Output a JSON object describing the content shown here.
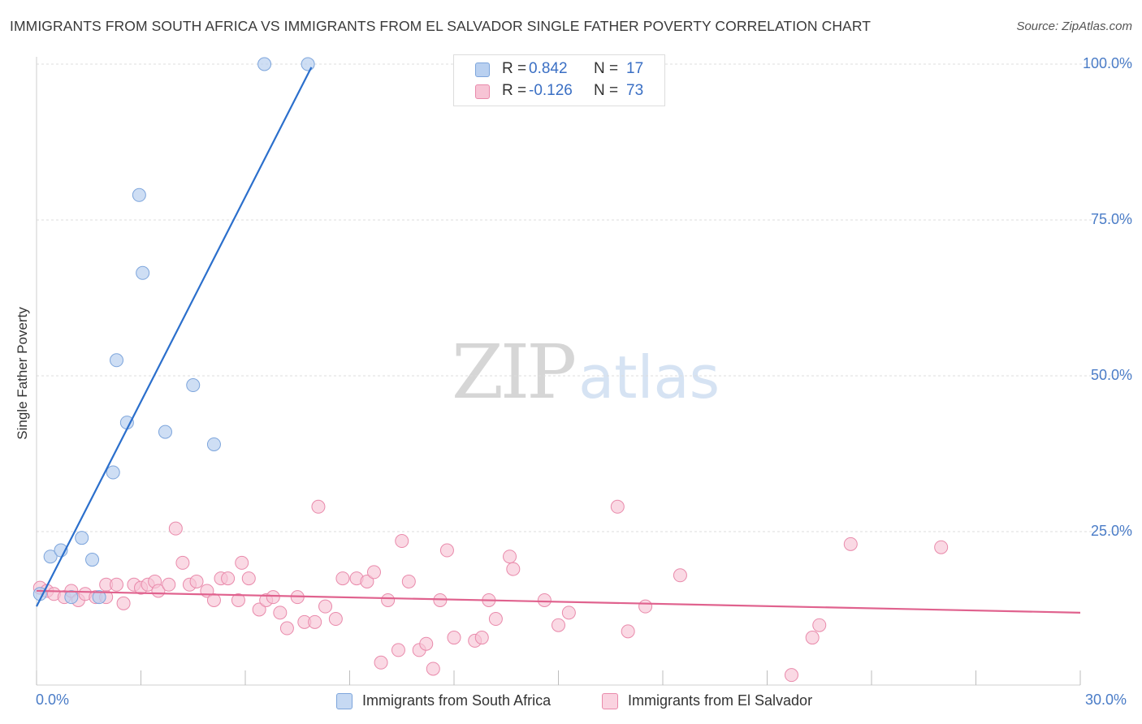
{
  "title": "IMMIGRANTS FROM SOUTH AFRICA VS IMMIGRANTS FROM EL SALVADOR SINGLE FATHER POVERTY CORRELATION CHART",
  "source": "Source: ZipAtlas.com",
  "watermark": {
    "zip": "ZIP",
    "atlas": "atlas"
  },
  "colors": {
    "blue_fill": "#b9d0f0",
    "blue_edge": "#7da5dc",
    "blue_line": "#2b6fcc",
    "pink_fill": "#f7c4d5",
    "pink_edge": "#e98aab",
    "pink_line": "#e0628e",
    "tick_text": "#4a7cc7",
    "grid": "#dcdcdc"
  },
  "legend_top": [
    {
      "r_label": "R =",
      "r_value": "0.842",
      "n_label": "N =",
      "n_value": "17"
    },
    {
      "r_label": "R =",
      "r_value": "-0.126",
      "n_label": "N =",
      "n_value": "73"
    }
  ],
  "chart_data": {
    "type": "scatter",
    "title": "IMMIGRANTS FROM SOUTH AFRICA VS IMMIGRANTS FROM EL SALVADOR SINGLE FATHER POVERTY CORRELATION CHART",
    "xlabel": "",
    "ylabel": "Single Father Poverty",
    "xlim": [
      0,
      30
    ],
    "ylim": [
      0,
      105
    ],
    "x_tick_labels": [
      "0.0%",
      "30.0%"
    ],
    "y_ticks": [
      25,
      50,
      75,
      100
    ],
    "y_tick_labels": [
      "25.0%",
      "50.0%",
      "75.0%",
      "100.0%"
    ],
    "grid": true,
    "legend_position": "bottom",
    "series": [
      {
        "name": "Immigrants from South Africa",
        "color": "#b9d0f0",
        "R": 0.842,
        "N": 17,
        "points": [
          [
            0.1,
            15.0
          ],
          [
            0.4,
            21.0
          ],
          [
            0.7,
            22.0
          ],
          [
            1.0,
            14.5
          ],
          [
            1.3,
            24.0
          ],
          [
            1.6,
            20.5
          ],
          [
            1.8,
            14.5
          ],
          [
            2.2,
            34.5
          ],
          [
            2.3,
            52.5
          ],
          [
            2.6,
            42.5
          ],
          [
            2.95,
            79.0
          ],
          [
            3.05,
            66.5
          ],
          [
            3.7,
            41.0
          ],
          [
            4.5,
            48.5
          ],
          [
            5.1,
            39.0
          ],
          [
            6.55,
            100.0
          ],
          [
            7.8,
            100.0
          ]
        ],
        "trendline": {
          "x": [
            0.0,
            7.9
          ],
          "y": [
            13.0,
            99.5
          ]
        }
      },
      {
        "name": "Immigrants from El Salvador",
        "color": "#f7c4d5",
        "R": -0.126,
        "N": 73,
        "points": [
          [
            0.1,
            16.0
          ],
          [
            0.3,
            15.5
          ],
          [
            0.5,
            15.0
          ],
          [
            0.8,
            14.5
          ],
          [
            1.0,
            15.5
          ],
          [
            1.2,
            14.0
          ],
          [
            1.4,
            15.0
          ],
          [
            1.7,
            14.5
          ],
          [
            2.0,
            14.5
          ],
          [
            2.0,
            16.5
          ],
          [
            2.3,
            16.5
          ],
          [
            2.5,
            13.5
          ],
          [
            2.8,
            16.5
          ],
          [
            3.0,
            16.0
          ],
          [
            3.2,
            16.5
          ],
          [
            3.4,
            17.0
          ],
          [
            3.5,
            15.5
          ],
          [
            3.8,
            16.5
          ],
          [
            4.0,
            25.5
          ],
          [
            4.2,
            20.0
          ],
          [
            4.4,
            16.5
          ],
          [
            4.6,
            17.0
          ],
          [
            4.9,
            15.5
          ],
          [
            5.1,
            14.0
          ],
          [
            5.3,
            17.5
          ],
          [
            5.5,
            17.5
          ],
          [
            5.8,
            14.0
          ],
          [
            5.9,
            20.0
          ],
          [
            6.1,
            17.5
          ],
          [
            6.4,
            12.5
          ],
          [
            6.6,
            14.0
          ],
          [
            6.8,
            14.5
          ],
          [
            7.0,
            12.0
          ],
          [
            7.2,
            9.5
          ],
          [
            7.5,
            14.5
          ],
          [
            7.7,
            10.5
          ],
          [
            8.0,
            10.5
          ],
          [
            8.1,
            29.0
          ],
          [
            8.3,
            13.0
          ],
          [
            8.6,
            11.0
          ],
          [
            8.8,
            17.5
          ],
          [
            9.2,
            17.5
          ],
          [
            9.5,
            17.0
          ],
          [
            9.7,
            18.5
          ],
          [
            9.9,
            4.0
          ],
          [
            10.1,
            14.0
          ],
          [
            10.4,
            6.0
          ],
          [
            10.5,
            23.5
          ],
          [
            10.7,
            17.0
          ],
          [
            11.0,
            6.0
          ],
          [
            11.2,
            7.0
          ],
          [
            11.4,
            3.0
          ],
          [
            11.6,
            14.0
          ],
          [
            11.8,
            22.0
          ],
          [
            12.0,
            8.0
          ],
          [
            12.6,
            7.5
          ],
          [
            12.8,
            8.0
          ],
          [
            13.0,
            14.0
          ],
          [
            13.2,
            11.0
          ],
          [
            13.6,
            21.0
          ],
          [
            13.7,
            19.0
          ],
          [
            14.6,
            14.0
          ],
          [
            15.0,
            10.0
          ],
          [
            15.3,
            12.0
          ],
          [
            16.7,
            29.0
          ],
          [
            17.0,
            9.0
          ],
          [
            17.5,
            13.0
          ],
          [
            18.5,
            18.0
          ],
          [
            21.7,
            2.0
          ],
          [
            22.3,
            8.0
          ],
          [
            22.5,
            10.0
          ],
          [
            23.4,
            23.0
          ],
          [
            26.0,
            22.5
          ]
        ],
        "trendline": {
          "x": [
            0.0,
            30.0
          ],
          "y": [
            15.5,
            12.0
          ]
        }
      }
    ]
  }
}
